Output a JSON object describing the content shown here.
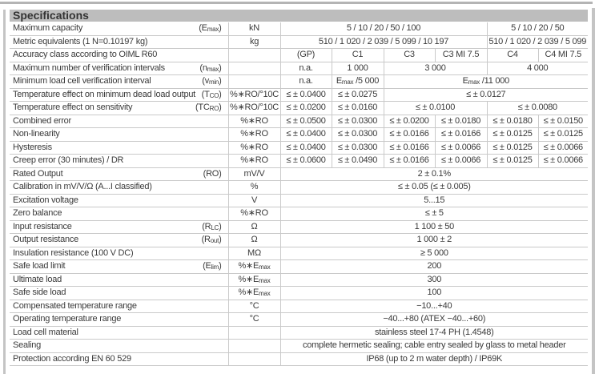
{
  "title": "Specifications",
  "rows": [
    {
      "label": "Maximum capacity",
      "sym": {
        "base": "E",
        "sub": "max"
      },
      "unit": "kN",
      "cells": [
        {
          "text": "5 / 10 / 20 / 50 / 100",
          "span": 4
        },
        {
          "text": "5 / 10 / 20 / 50",
          "span": 2
        }
      ]
    },
    {
      "label": "Metric equivalents (1 N=0.10197 kg)",
      "unit": "kg",
      "cells": [
        {
          "text": "510 / 1 020 / 2 039 / 5 099 / 10 197",
          "span": 4
        },
        {
          "text": "510 / 1 020 / 2 039 / 5 099",
          "span": 2
        }
      ]
    },
    {
      "label": "Accuracy class according to OIML R60",
      "unit": "",
      "cells": [
        {
          "text": "(GP)"
        },
        {
          "text": "C1"
        },
        {
          "text": "C3"
        },
        {
          "text": "C3 MI 7.5"
        },
        {
          "text": "C4"
        },
        {
          "text": "C4 MI 7.5"
        }
      ]
    },
    {
      "label": "Maximum number of verification intervals",
      "sym": {
        "base": "n",
        "sub": "max"
      },
      "unit": "",
      "cells": [
        {
          "text": "n.a."
        },
        {
          "text": "1 000"
        },
        {
          "text": "3 000",
          "span": 2
        },
        {
          "text": "4 000",
          "span": 2
        }
      ]
    },
    {
      "label": "Minimum load cell verification interval",
      "sym": {
        "base": "v",
        "sub": "min"
      },
      "unit": "",
      "cells": [
        {
          "text": "n.a."
        },
        {
          "base": "E",
          "sub": "max",
          "rest": " /5 000"
        },
        {
          "base": "E",
          "sub": "max",
          "rest": " /11 000",
          "span": 4
        }
      ]
    },
    {
      "label": "Temperature effect on minimum dead load output",
      "sym": {
        "base": "T",
        "sub": "CO"
      },
      "unit": "%∗RO/°10C",
      "cells": [
        {
          "text": "≤ ± 0.0400"
        },
        {
          "text": "≤ ± 0.0275"
        },
        {
          "text": "≤ ± 0.0127",
          "span": 4
        }
      ]
    },
    {
      "label": "Temperature effect on sensitivity",
      "sym": {
        "base": "TC",
        "sub": "RO"
      },
      "unit": "%∗RO/°10C",
      "cells": [
        {
          "text": "≤ ± 0.0200"
        },
        {
          "text": "≤ ± 0.0160"
        },
        {
          "text": "≤ ± 0.0100",
          "span": 2
        },
        {
          "text": "≤ ± 0.0080",
          "span": 2
        }
      ]
    },
    {
      "label": "Combined error",
      "unit": "%∗RO",
      "cells": [
        {
          "text": "≤ ± 0.0500"
        },
        {
          "text": "≤ ± 0.0300"
        },
        {
          "text": "≤ ± 0.0200"
        },
        {
          "text": "≤ ± 0.0180"
        },
        {
          "text": "≤ ± 0.0180"
        },
        {
          "text": "≤ ± 0.0150"
        }
      ]
    },
    {
      "label": "Non-linearity",
      "unit": "%∗RO",
      "cells": [
        {
          "text": "≤ ± 0.0400"
        },
        {
          "text": "≤ ± 0.0300"
        },
        {
          "text": "≤ ± 0.0166"
        },
        {
          "text": "≤ ± 0.0166"
        },
        {
          "text": "≤ ± 0.0125"
        },
        {
          "text": "≤ ± 0.0125"
        }
      ]
    },
    {
      "label": "Hysteresis",
      "unit": "%∗RO",
      "cells": [
        {
          "text": "≤ ± 0.0400"
        },
        {
          "text": "≤ ± 0.0300"
        },
        {
          "text": "≤ ± 0.0166"
        },
        {
          "text": "≤ ± 0.0066"
        },
        {
          "text": "≤ ± 0.0125"
        },
        {
          "text": "≤ ± 0.0066"
        }
      ]
    },
    {
      "label": "Creep error (30 minutes) / DR",
      "unit": "%∗RO",
      "cells": [
        {
          "text": "≤ ± 0.0600"
        },
        {
          "text": "≤ ± 0.0490"
        },
        {
          "text": "≤ ± 0.0166"
        },
        {
          "text": "≤ ± 0.0066"
        },
        {
          "text": "≤ ± 0.0125"
        },
        {
          "text": "≤ ± 0.0066"
        }
      ]
    },
    {
      "label": "Rated Output",
      "sym": {
        "base": "RO",
        "sub": ""
      },
      "unit": "mV/V",
      "cells": [
        {
          "text": "2 ± 0.1%",
          "span": 6
        }
      ]
    },
    {
      "label": "Calibration in mV/V/Ω (A...I classified)",
      "unit": "%",
      "cells": [
        {
          "text": "≤ ± 0.05 (≤ ± 0.005)",
          "span": 6
        }
      ]
    },
    {
      "label": "Excitation voltage",
      "unit": "V",
      "cells": [
        {
          "text": "5...15",
          "span": 6
        }
      ]
    },
    {
      "label": "Zero balance",
      "unit": "%∗RO",
      "cells": [
        {
          "text": "≤ ± 5",
          "span": 6
        }
      ]
    },
    {
      "label": "Input resistance",
      "sym": {
        "base": "R",
        "sub": "LC"
      },
      "unit": "Ω",
      "cells": [
        {
          "text": "1 100 ± 50",
          "span": 6
        }
      ]
    },
    {
      "label": "Output resistance",
      "sym": {
        "base": "R",
        "sub": "out"
      },
      "unit": "Ω",
      "cells": [
        {
          "text": "1 000 ± 2",
          "span": 6
        }
      ]
    },
    {
      "label": "Insulation resistance (100 V DC)",
      "unit": "MΩ",
      "cells": [
        {
          "text": "≥ 5 000",
          "span": 6
        }
      ]
    },
    {
      "label": "Safe load limit",
      "sym": {
        "base": "E",
        "sub": "lim"
      },
      "unit": {
        "base": "%∗E",
        "sub": "max"
      },
      "cells": [
        {
          "text": "200",
          "span": 6
        }
      ]
    },
    {
      "label": "Ultimate load",
      "unit": {
        "base": "%∗E",
        "sub": "max"
      },
      "cells": [
        {
          "text": "300",
          "span": 6
        }
      ]
    },
    {
      "label": "Safe side load",
      "unit": {
        "base": "%∗E",
        "sub": "max"
      },
      "cells": [
        {
          "text": "100",
          "span": 6
        }
      ]
    },
    {
      "label": "Compensated temperature range",
      "unit": "°C",
      "cells": [
        {
          "text": "−10...+40",
          "span": 6
        }
      ]
    },
    {
      "label": "Operating temperature range",
      "unit": "°C",
      "cells": [
        {
          "text": "−40...+80 (ATEX −40...+60)",
          "span": 6
        }
      ]
    },
    {
      "label": "Load cell material",
      "unit": "",
      "cells": [
        {
          "text": "stainless steel 17-4 PH (1.4548)",
          "span": 6
        }
      ]
    },
    {
      "label": "Sealing",
      "unit": "",
      "cells": [
        {
          "text": "complete hermetic sealing; cable entry sealed by glass to metal header",
          "span": 6
        }
      ]
    },
    {
      "label": "Protection according EN 60 529",
      "unit": "",
      "cells": [
        {
          "text": "IP68 (up to 2 m water depth) / IP69K",
          "span": 6
        }
      ]
    }
  ]
}
